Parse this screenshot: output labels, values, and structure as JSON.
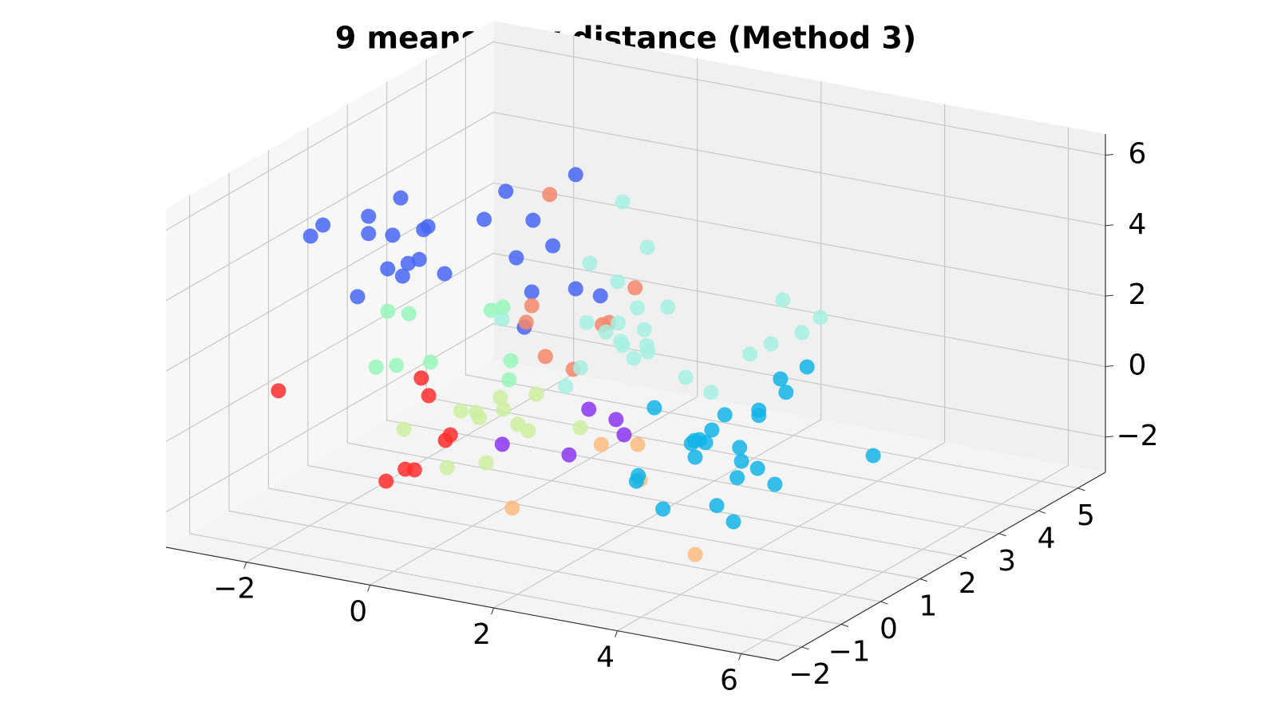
{
  "chart_data": {
    "type": "scatter3d",
    "title": "9 means max distance (Method 3)",
    "xlim": [
      -3.3,
      6.6
    ],
    "ylim": [
      -2.6,
      5.7
    ],
    "zlim": [
      -3,
      6.6
    ],
    "xticks": [
      {
        "value": -2,
        "label": "−2"
      },
      0,
      2,
      4,
      6
    ],
    "yticks": [
      {
        "value": -2,
        "label": "−2"
      },
      {
        "value": -1,
        "label": "−1"
      },
      0,
      1,
      2,
      3,
      4,
      5
    ],
    "zticks": [
      {
        "value": -2,
        "label": "−2"
      },
      0,
      2,
      4,
      6
    ],
    "grid": true,
    "series": [
      {
        "color": "#4666f5",
        "x": [
          0.15,
          -0.98,
          -2.68,
          -3.2,
          -2.35,
          -2.55,
          -3.2,
          -2.81,
          -2.24,
          -2.31,
          -1.33,
          -0.54,
          -0.22,
          -0.81,
          -2.38,
          -2.56,
          -2.89,
          -2.65,
          -1.97,
          -1.79,
          -0.56,
          0.15,
          0.55,
          -0.68
        ],
        "y": [
          2.38,
          2.38,
          2.38,
          2.38,
          -0.11,
          -0.11,
          2.38,
          2.38,
          2.38,
          2.38,
          2.38,
          2.38,
          2.38,
          2.38,
          2.38,
          2.38,
          2.38,
          2.38,
          2.38,
          -0.11,
          2.38,
          2.38,
          2.38,
          2.38
        ],
        "z": [
          5.49,
          4.65,
          3.91,
          3.22,
          4.85,
          4.47,
          2.73,
          2.81,
          3.24,
          3.13,
          3.74,
          3.97,
          3.35,
          2.82,
          2.26,
          2.09,
          1.83,
          1.7,
          1.99,
          3.0,
          1.93,
          2.25,
          2.18,
          0.89
        ]
      },
      {
        "color": "#f4876a",
        "x": [
          -0.27,
          1.11,
          -0.56,
          -0.65,
          0.58,
          0.69,
          -0.34,
          0.11
        ],
        "y": [
          2.38,
          2.38,
          2.38,
          2.38,
          2.38,
          2.38,
          2.38,
          2.38
        ],
        "z": [
          4.79,
          2.59,
          1.54,
          1.04,
          1.37,
          1.47,
          0.17,
          -0.05
        ]
      },
      {
        "color": "#a4f1e2",
        "x": [
          -0.15,
          0.25,
          -0.68,
          -0.23,
          0.09,
          0.58,
          -2.1,
          -0.73,
          -0.22,
          0.2,
          -0.42,
          -0.18,
          0.24,
          -0.15,
          0.26,
          0.03,
          -0.83,
          -1.07,
          0.87,
          1.28,
          1.91,
          2.25,
          2.44,
          2.75,
          3.05
        ],
        "y": [
          4.04,
          4.04,
          4.04,
          4.04,
          4.04,
          4.04,
          4.04,
          4.04,
          4.04,
          4.04,
          4.04,
          4.04,
          4.04,
          4.04,
          4.04,
          4.04,
          4.04,
          4.04,
          4.04,
          4.04,
          4.04,
          4.04,
          4.04,
          4.04,
          4.04
        ],
        "z": [
          3.55,
          2.39,
          1.64,
          1.26,
          0.62,
          0.8,
          -0.41,
          -0.06,
          0.09,
          0.04,
          -0.23,
          -0.42,
          -0.4,
          -0.52,
          -0.57,
          -0.83,
          -1.38,
          -1.98,
          -1.1,
          -1.39,
          -0.1,
          0.3,
          1.61,
          0.78,
          1.31
        ]
      },
      {
        "color": "#98f7ba",
        "x": [
          -0.16,
          0.03,
          -1.83,
          -1.49,
          0.16,
          0.13,
          -1.14,
          -2.02,
          -1.69
        ],
        "y": [
          0.72,
          0.72,
          0.72,
          0.72,
          0.72,
          0.72,
          0.72,
          0.72,
          0.72
        ],
        "z": [
          2.61,
          2.76,
          2.04,
          2.08,
          1.28,
          0.73,
          0.82,
          0.39,
          0.55
        ]
      },
      {
        "color": "#ff2d2d",
        "x": [
          -2.54,
          -0.23,
          -0.11,
          0.24,
          0.16,
          -0.49,
          -0.34,
          -0.8
        ],
        "y": [
          -0.94,
          -0.94,
          -0.94,
          -0.94,
          -0.94,
          -0.94,
          -0.94,
          -0.94
        ],
        "z": [
          0.62,
          1.73,
          1.27,
          0.27,
          0.09,
          -0.94,
          -0.91,
          -1.38
        ]
      },
      {
        "color": "#cdf0a0",
        "x": [
          1.1,
          0.52,
          -0.12,
          0.13,
          0.18,
          0.57,
          0.8,
          0.97,
          -1.04,
          1.81,
          -0.34,
          0.29
        ],
        "y": [
          -0.11,
          -0.11,
          -0.11,
          -0.11,
          -0.11,
          -0.11,
          -0.11,
          -0.11,
          -0.11,
          -0.11,
          -0.11,
          -0.11
        ],
        "z": [
          1.17,
          0.89,
          0.3,
          0.34,
          0.2,
          0.57,
          0.22,
          0.09,
          -0.52,
          0.45,
          -1.38,
          -1.04
        ]
      },
      {
        "color": "#8a35f0",
        "x": [
          1.95,
          2.39,
          2.52,
          0.55,
          1.63
        ],
        "y": [
          -0.11,
          -0.11,
          -0.11,
          -0.11,
          -0.11
        ],
        "z": [
          1.02,
          0.87,
          0.48,
          -0.43,
          -0.38
        ]
      },
      {
        "color": "#fdbb7e",
        "x": [
          2.68,
          3.27,
          3.31,
          1.24,
          4.2
        ],
        "y": [
          -0.94,
          -0.94,
          -0.94,
          -0.94,
          -0.94
        ],
        "z": [
          0.79,
          0.98,
          0.0,
          -1.48,
          -1.84
        ]
      },
      {
        "color": "#12b4e6",
        "x": [
          4.95,
          4.52,
          4.61,
          2.48,
          3.62,
          4.17,
          4.17,
          3.41,
          3.08,
          3.21,
          3.31,
          3.13,
          3.86,
          3.14,
          3.89,
          4.15,
          3.82,
          4.43,
          6.02,
          2.22,
          2.19,
          2.62,
          3.49,
          3.76
        ],
        "y": [
          0.72,
          0.72,
          0.72,
          0.72,
          0.72,
          0.72,
          0.72,
          0.72,
          0.72,
          0.72,
          0.72,
          0.72,
          0.72,
          0.72,
          0.72,
          0.72,
          0.72,
          0.72,
          0.72,
          0.72,
          0.72,
          0.72,
          0.72,
          0.72
        ],
        "z": [
          2.66,
          2.18,
          1.83,
          0.7,
          0.87,
          1.18,
          1.03,
          0.37,
          -0.12,
          0.03,
          -0.02,
          -0.02,
          0.02,
          -0.49,
          -0.36,
          -0.48,
          -0.85,
          -0.84,
          0.49,
          -1.31,
          -1.48,
          -2.13,
          -1.75,
          -2.12
        ]
      }
    ]
  }
}
